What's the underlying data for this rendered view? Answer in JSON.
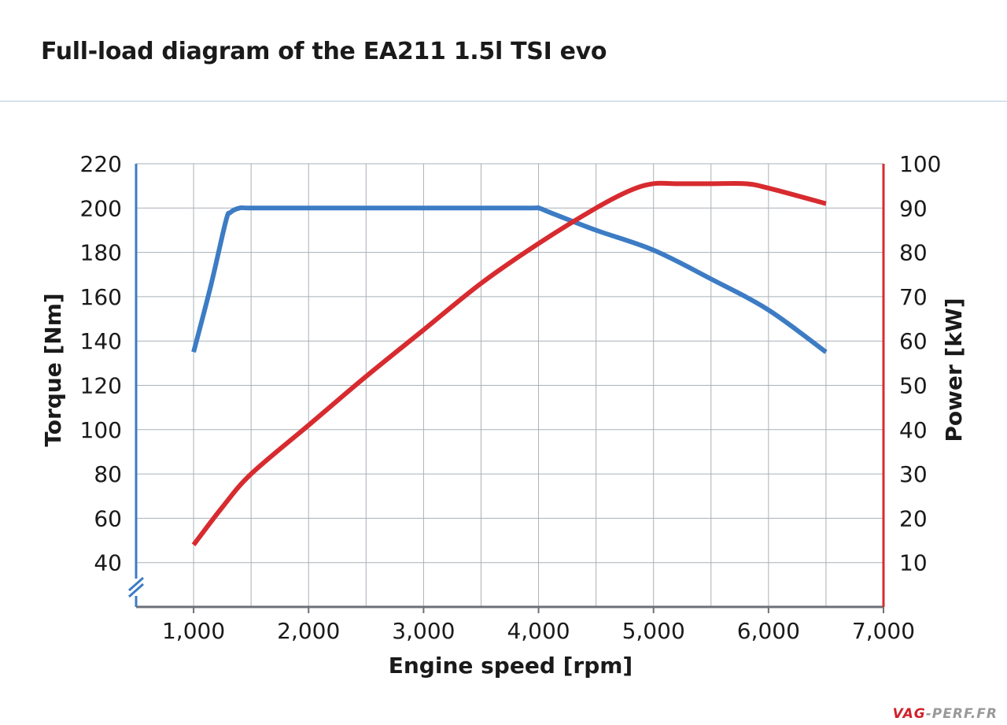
{
  "header": {
    "title": "Full-load diagram of the EA211 1.5l TSI evo"
  },
  "logo": {
    "brand": "VAG",
    "suffix": "-PERF.FR"
  },
  "colors": {
    "torque": "#3d7cc4",
    "power": "#d72b2f",
    "grid": "#a9b1b8",
    "right_axis": "#d72b2f",
    "left_axis": "#3d7cc4"
  },
  "chart_data": {
    "type": "line",
    "title": "Full-load diagram of the EA211 1.5l TSI evo",
    "xlabel": "Engine speed [rpm]",
    "ylabel": "Torque [Nm]",
    "y2label": "Power [kW]",
    "xlim": [
      500,
      7000
    ],
    "ylim": [
      20,
      220
    ],
    "y2lim": [
      0,
      100
    ],
    "x_ticks": [
      1000,
      2000,
      3000,
      4000,
      5000,
      6000,
      7000
    ],
    "x_tick_labels": [
      "1,000",
      "2,000",
      "3,000",
      "4,000",
      "5,000",
      "6,000",
      "7,000"
    ],
    "y_ticks": [
      40,
      60,
      80,
      100,
      120,
      140,
      160,
      180,
      200,
      220
    ],
    "y_tick_labels": [
      "40",
      "60",
      "80",
      "100",
      "120",
      "140",
      "160",
      "180",
      "200",
      "220"
    ],
    "y2_ticks": [
      10,
      20,
      30,
      40,
      50,
      60,
      70,
      80,
      90,
      100
    ],
    "y2_tick_labels": [
      "10",
      "20",
      "30",
      "40",
      "50",
      "60",
      "70",
      "80",
      "90",
      "100"
    ],
    "grid": true,
    "axis_break": "left",
    "series": [
      {
        "name": "Torque",
        "axis": "left",
        "color": "#3d7cc4",
        "x": [
          1000,
          1150,
          1280,
          1320,
          1400,
          1500,
          2000,
          3000,
          3900,
          4000,
          4100,
          4500,
          5000,
          5500,
          6000,
          6500
        ],
        "y": [
          135,
          165,
          194,
          198,
          200,
          200,
          200,
          200,
          200,
          200,
          198,
          190,
          181,
          168,
          154,
          135
        ]
      },
      {
        "name": "Power",
        "axis": "right",
        "color": "#d72b2f",
        "x": [
          1000,
          1250,
          1500,
          2000,
          2500,
          3000,
          3500,
          4000,
          4500,
          4800,
          5000,
          5200,
          5500,
          5800,
          6000,
          6500
        ],
        "y": [
          14,
          22.5,
          30,
          41,
          52,
          62.5,
          73,
          82,
          90,
          94,
          95.5,
          95.5,
          95.5,
          95.5,
          94.5,
          91
        ]
      }
    ]
  }
}
